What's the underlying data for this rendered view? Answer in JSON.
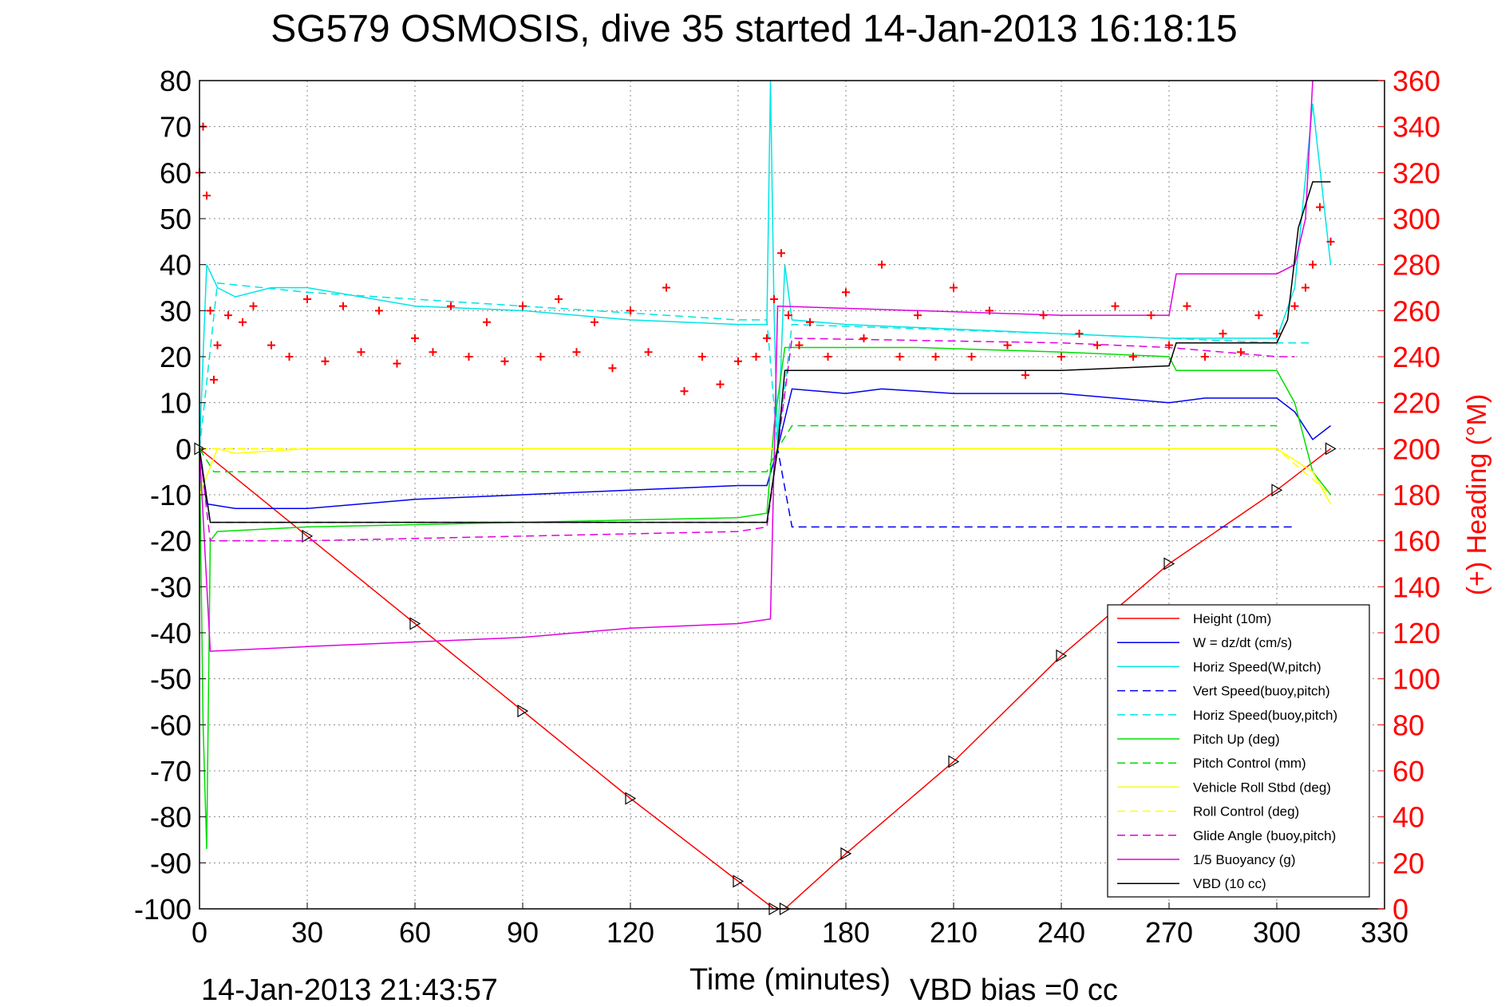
{
  "chart_data": {
    "type": "line",
    "title": "SG579 OSMOSIS, dive 35 started 14-Jan-2013 16:18:15",
    "xlabel": "Time (minutes)",
    "ylabel": "",
    "y2label": "(+) Heading (°M)",
    "footer_left": "14-Jan-2013 21:43:57",
    "footer_right": "VBD bias =0 cc",
    "xlim": [
      0,
      330
    ],
    "ylim": [
      -100,
      80
    ],
    "y2lim": [
      0,
      360
    ],
    "xticks": [
      0,
      30,
      60,
      90,
      120,
      150,
      180,
      210,
      240,
      270,
      300,
      330
    ],
    "yticks": [
      -100,
      -90,
      -80,
      -70,
      -60,
      -50,
      -40,
      -30,
      -20,
      -10,
      0,
      10,
      20,
      30,
      40,
      50,
      60,
      70,
      80
    ],
    "y2ticks": [
      0,
      20,
      40,
      60,
      80,
      100,
      120,
      140,
      160,
      180,
      200,
      220,
      240,
      260,
      280,
      300,
      320,
      340,
      360
    ],
    "grid": true,
    "legend_position": "bottom-right",
    "colors": {
      "heading": "#ff0000",
      "height": "#ff0000",
      "w": "#0000ee",
      "horiz": "#00e5e5",
      "pitch": "#00dd00",
      "roll": "#ffff00",
      "glide": "#e000e0",
      "buoy": "#e000e0",
      "vbd": "#000000",
      "grid": "#888888"
    },
    "series": [
      {
        "name": "Height (10m)",
        "color": "#ff0000",
        "dash": "solid",
        "x": [
          0,
          30,
          60,
          90,
          120,
          150,
          160,
          163,
          180,
          210,
          240,
          270,
          300,
          315
        ],
        "y": [
          0,
          -19,
          -38,
          -57,
          -76,
          -94,
          -100,
          -100,
          -88,
          -68,
          -45,
          -25,
          -9,
          0
        ]
      },
      {
        "name": "W = dz/dt (cm/s)",
        "color": "#0000ee",
        "dash": "solid",
        "x": [
          0,
          2,
          10,
          30,
          60,
          90,
          120,
          150,
          158,
          161,
          165,
          180,
          190,
          210,
          240,
          270,
          280,
          300,
          305,
          310,
          315
        ],
        "y": [
          0,
          -12,
          -13,
          -13,
          -11,
          -10,
          -9,
          -8,
          -8,
          0,
          13,
          12,
          13,
          12,
          12,
          10,
          11,
          11,
          8,
          2,
          5
        ]
      },
      {
        "name": "Horiz Speed(W,pitch)",
        "color": "#00e5e5",
        "dash": "solid",
        "x": [
          0,
          2,
          5,
          10,
          20,
          30,
          60,
          90,
          120,
          150,
          158,
          159,
          160,
          161,
          163,
          165,
          180,
          210,
          240,
          270,
          300,
          305,
          310,
          315
        ],
        "y": [
          0,
          40,
          35,
          33,
          35,
          35,
          31,
          30,
          28,
          27,
          27,
          80,
          30,
          0,
          40,
          28,
          27,
          26,
          25,
          24,
          24,
          35,
          75,
          40
        ]
      },
      {
        "name": "Vert Speed(buoy,pitch)",
        "color": "#0000ee",
        "dash": "dashed",
        "x": [
          0,
          3,
          158,
          161,
          165,
          305
        ],
        "y": [
          0,
          -16,
          -16,
          0,
          -17,
          -17
        ]
      },
      {
        "name": "Horiz Speed(buoy,pitch)",
        "color": "#00e5e5",
        "dash": "dashed",
        "x": [
          0,
          5,
          30,
          90,
          150,
          158,
          161,
          165,
          240,
          300,
          310
        ],
        "y": [
          0,
          36,
          34,
          31,
          28,
          28,
          0,
          27,
          25,
          23,
          23
        ]
      },
      {
        "name": "Pitch Up (deg)",
        "color": "#00dd00",
        "dash": "solid",
        "x": [
          0,
          1,
          2,
          3,
          5,
          30,
          90,
          150,
          158,
          160,
          163,
          165,
          200,
          240,
          270,
          272,
          300,
          305,
          310,
          315
        ],
        "y": [
          0,
          -60,
          -87,
          -20,
          -18,
          -17,
          -16,
          -15,
          -14,
          5,
          22,
          22,
          22,
          21,
          20,
          17,
          17,
          10,
          -5,
          -10
        ]
      },
      {
        "name": "Pitch Control (mm)",
        "color": "#00dd00",
        "dash": "dashed",
        "x": [
          0,
          4,
          158,
          161,
          165,
          300
        ],
        "y": [
          0,
          -5,
          -5,
          0,
          5,
          5
        ]
      },
      {
        "name": "Vehicle Roll Stbd (deg)",
        "color": "#ffff00",
        "dash": "solid",
        "x": [
          0,
          5,
          10,
          30,
          60,
          90,
          120,
          150,
          158,
          161,
          165,
          200,
          240,
          270,
          300,
          310,
          315
        ],
        "y": [
          -10,
          0,
          -1,
          0,
          0,
          0,
          0,
          0,
          0,
          0,
          0,
          0,
          0,
          0,
          0,
          -5,
          -12
        ]
      },
      {
        "name": "Roll Control (deg)",
        "color": "#ffff00",
        "dash": "dashed",
        "x": [
          0,
          5,
          150,
          160,
          165,
          300,
          315
        ],
        "y": [
          0,
          0,
          0,
          0,
          0,
          0,
          -10
        ]
      },
      {
        "name": "Glide Angle (buoy,pitch)",
        "color": "#e000e0",
        "dash": "dashed",
        "x": [
          0,
          3,
          30,
          90,
          150,
          158,
          161,
          165,
          240,
          270,
          300,
          305
        ],
        "y": [
          0,
          -20,
          -20,
          -19,
          -18,
          -17,
          0,
          24,
          23,
          22,
          20,
          20
        ]
      },
      {
        "name": "1/5 Buoyancy (g)",
        "color": "#e000e0",
        "dash": "solid",
        "x": [
          0,
          3,
          30,
          60,
          90,
          120,
          150,
          159,
          161,
          200,
          240,
          270,
          272,
          300,
          305,
          308,
          310
        ],
        "y": [
          0,
          -44,
          -43,
          -42,
          -41,
          -39,
          -38,
          -37,
          31,
          30,
          29,
          29,
          38,
          38,
          40,
          50,
          80
        ]
      },
      {
        "name": "VBD (10 cc)",
        "color": "#000000",
        "dash": "solid",
        "x": [
          0,
          3,
          158,
          161,
          163,
          200,
          240,
          270,
          272,
          300,
          303,
          306,
          310,
          315
        ],
        "y": [
          0,
          -16,
          -16,
          0,
          17,
          17,
          17,
          18,
          23,
          23,
          28,
          48,
          58,
          58
        ]
      },
      {
        "name": "(+) Heading",
        "color": "#ff0000",
        "dash": "plus",
        "axis": "right",
        "x": [
          0,
          1,
          2,
          3,
          4,
          5,
          8,
          12,
          15,
          20,
          25,
          30,
          35,
          40,
          45,
          50,
          55,
          60,
          65,
          70,
          75,
          80,
          85,
          90,
          95,
          100,
          105,
          110,
          115,
          120,
          125,
          130,
          135,
          140,
          145,
          150,
          155,
          158,
          160,
          162,
          164,
          167,
          170,
          175,
          180,
          185,
          190,
          195,
          200,
          205,
          210,
          215,
          220,
          225,
          230,
          235,
          240,
          245,
          250,
          255,
          260,
          265,
          270,
          275,
          280,
          285,
          290,
          295,
          300,
          305,
          308,
          310,
          312,
          315
        ],
        "y": [
          320,
          340,
          310,
          260,
          230,
          245,
          258,
          255,
          262,
          245,
          240,
          265,
          238,
          262,
          242,
          260,
          237,
          248,
          242,
          262,
          240,
          255,
          238,
          262,
          240,
          265,
          242,
          255,
          235,
          260,
          242,
          270,
          225,
          240,
          228,
          238,
          240,
          248,
          265,
          285,
          258,
          245,
          255,
          240,
          268,
          248,
          280,
          240,
          258,
          240,
          270,
          240,
          260,
          245,
          232,
          258,
          240,
          250,
          245,
          262,
          240,
          258,
          245,
          262,
          240,
          250,
          242,
          258,
          250,
          262,
          270,
          280,
          305,
          290
        ]
      }
    ]
  }
}
